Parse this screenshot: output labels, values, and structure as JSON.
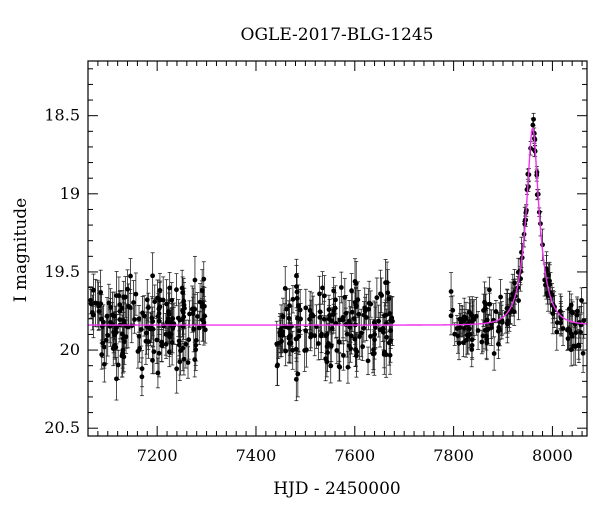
{
  "chart_data": {
    "type": "scatter",
    "title": "OGLE-2017-BLG-1245",
    "xlabel": "HJD - 2450000",
    "ylabel": "I magnitude",
    "xlim": [
      7060,
      8070
    ],
    "ylim": [
      20.55,
      18.15
    ],
    "y_inverted": true,
    "x_ticks": [
      7200,
      7400,
      7600,
      7800,
      8000
    ],
    "y_ticks": [
      18.5,
      19,
      19.5,
      20,
      20.5
    ],
    "x_tick_labels": [
      "7200",
      "7400",
      "7600",
      "7800",
      "8000"
    ],
    "y_tick_labels": [
      "18.5",
      "19",
      "19.5",
      "20",
      "20.5"
    ],
    "x_minor_step": 20,
    "y_minor_step": 0.1,
    "colors": {
      "data": "#000000",
      "model": "#ee33ee"
    },
    "model": {
      "label": "",
      "baseline_mag": 19.84,
      "peak_mag": 18.58,
      "t0": 7960,
      "tE": 28,
      "x_start": 7060,
      "x_end": 8070
    },
    "series": [
      {
        "name": "",
        "seasons": [
          {
            "x_range": [
              7065,
              7300
            ],
            "n": 180,
            "mean_mag": 19.86,
            "scatter": 0.13,
            "err": 0.12
          },
          {
            "x_range": [
              7440,
              7680
            ],
            "n": 170,
            "mean_mag": 19.88,
            "scatter": 0.13,
            "err": 0.12
          },
          {
            "x_range": [
              7790,
              8065
            ],
            "n": 170,
            "mean_mag": 19.84,
            "scatter": 0.1,
            "err": 0.1
          }
        ]
      }
    ],
    "grid": false,
    "legend": "none"
  }
}
